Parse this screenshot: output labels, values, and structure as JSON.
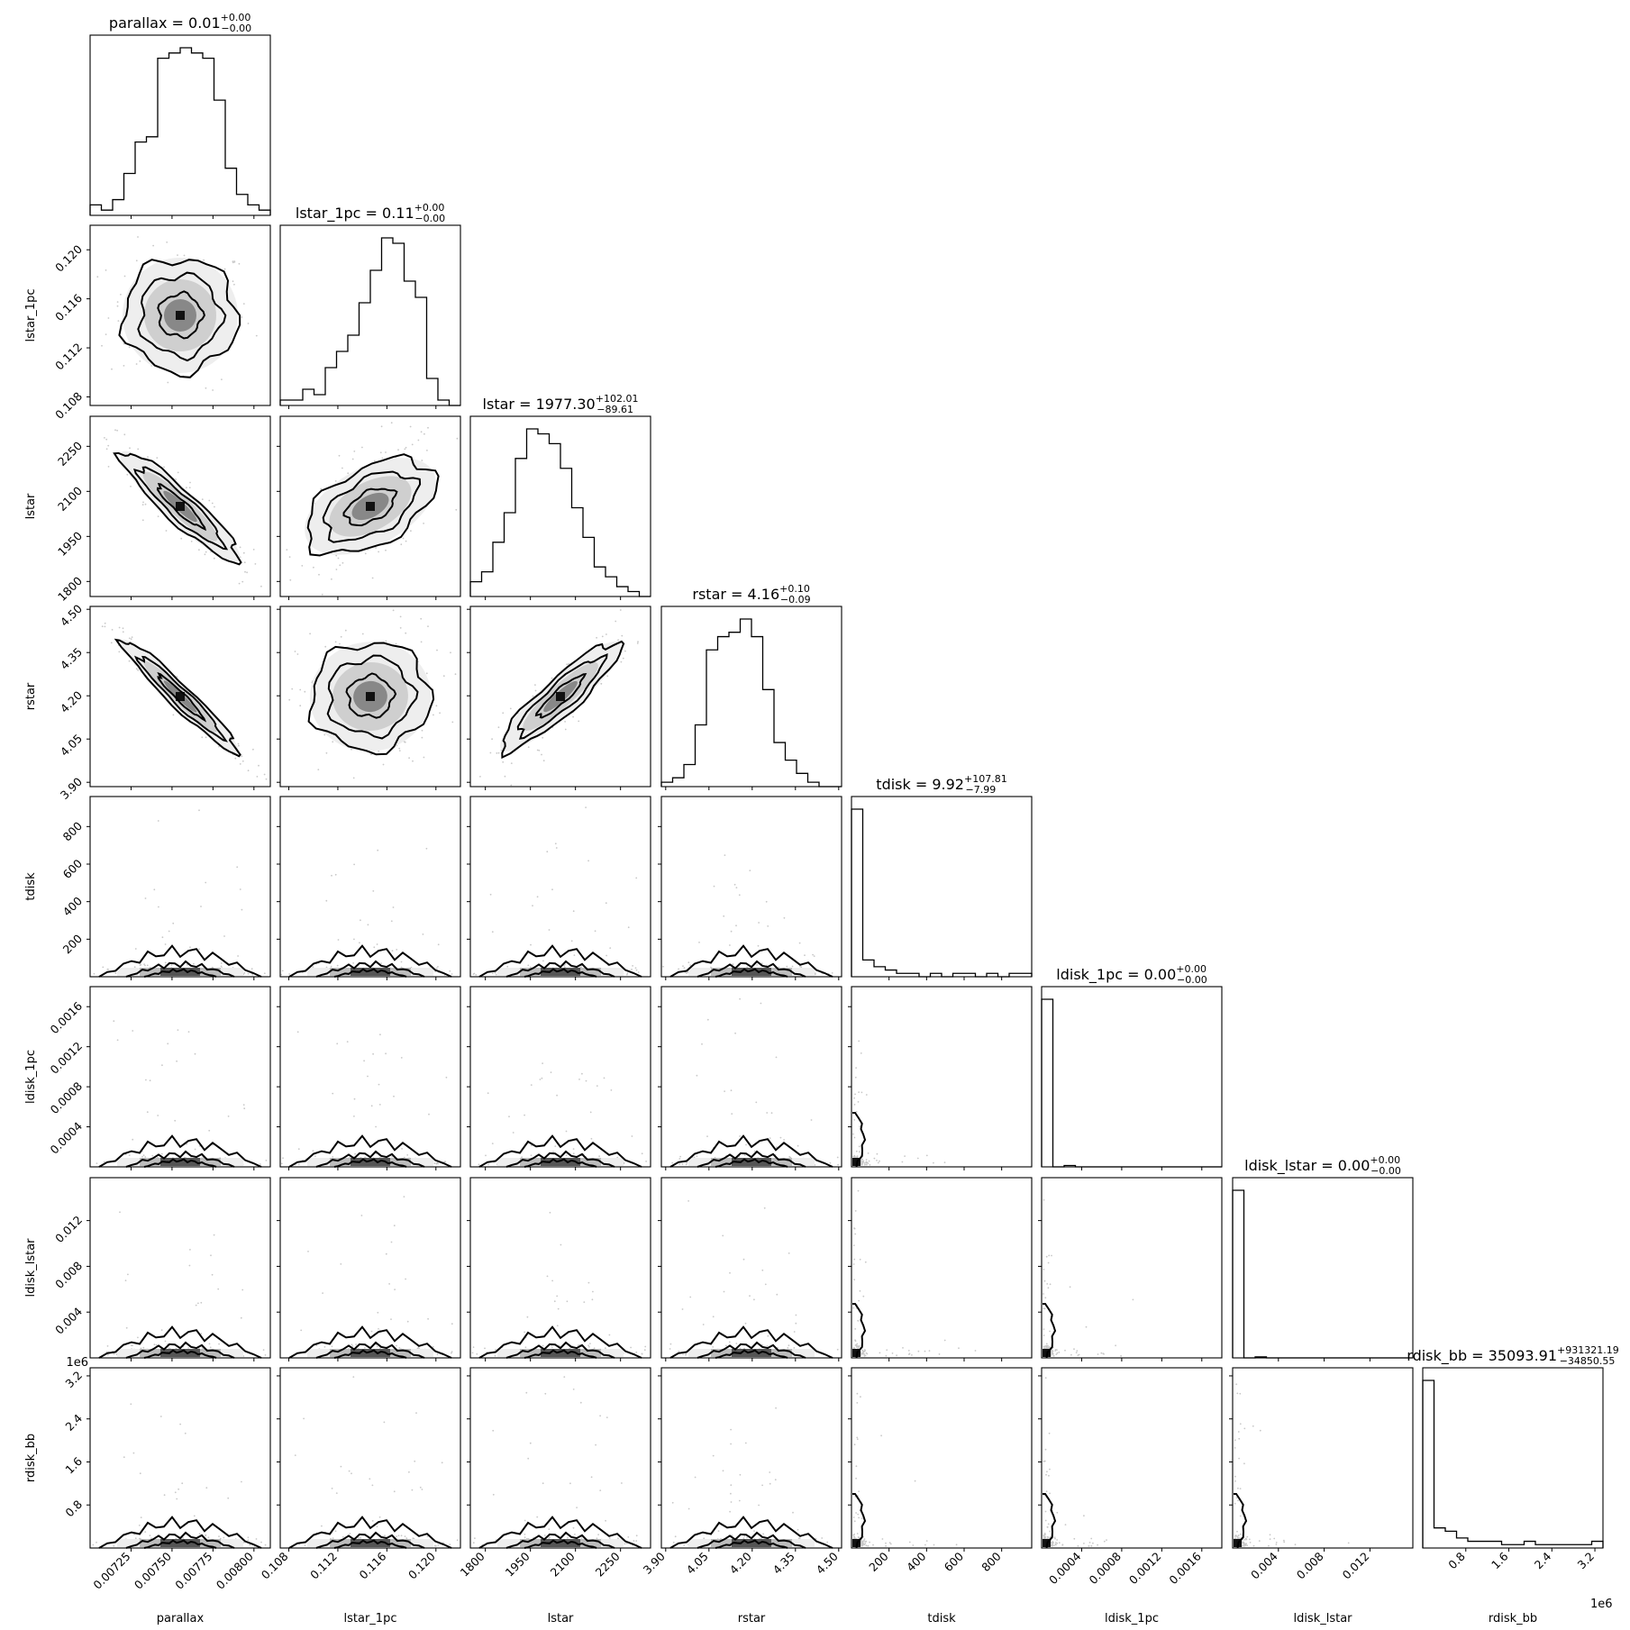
{
  "chart_data": {
    "type": "corner",
    "parameters": [
      "parallax",
      "lstar_1pc",
      "lstar",
      "rstar",
      "tdisk",
      "ldisk_1pc",
      "ldisk_lstar",
      "rdisk_bb"
    ],
    "axis_labels": [
      "parallax",
      "lstar_1pc",
      "lstar",
      "rstar",
      "tdisk",
      "ldisk_1pc",
      "ldisk_lstar",
      "rdisk_bb"
    ],
    "titles": [
      {
        "name": "parallax",
        "median": "0.01",
        "plus": "+0.00",
        "minus": "−0.00"
      },
      {
        "name": "lstar_1pc",
        "median": "0.11",
        "plus": "+0.00",
        "minus": "−0.00"
      },
      {
        "name": "lstar",
        "median": "1977.30",
        "plus": "+102.01",
        "minus": "−89.61"
      },
      {
        "name": "rstar",
        "median": "4.16",
        "plus": "+0.10",
        "minus": "−0.09"
      },
      {
        "name": "tdisk",
        "median": "9.92",
        "plus": "+107.81",
        "minus": "−7.99"
      },
      {
        "name": "ldisk_1pc",
        "median": "0.00",
        "plus": "+0.00",
        "minus": "−0.00"
      },
      {
        "name": "ldisk_lstar",
        "median": "0.00",
        "plus": "+0.00",
        "minus": "−0.00"
      },
      {
        "name": "rdisk_bb",
        "median": "35093.91",
        "plus": "+931321.19",
        "minus": "−34850.55"
      }
    ],
    "ranges": [
      [
        0.007,
        0.0081
      ],
      [
        0.1073,
        0.122
      ],
      [
        1750,
        2350
      ],
      [
        3.885,
        4.51
      ],
      [
        0,
        960
      ],
      [
        0,
        0.0018
      ],
      [
        0,
        0.01575
      ],
      [
        0,
        3350000.0
      ]
    ],
    "ticks": [
      [
        0.00725,
        0.0075,
        0.00775,
        0.008
      ],
      [
        0.108,
        0.112,
        0.116,
        0.12
      ],
      [
        1800,
        1950,
        2100,
        2250
      ],
      [
        3.9,
        4.05,
        4.2,
        4.35,
        4.5
      ],
      [
        200,
        400,
        600,
        800
      ],
      [
        0.0004,
        0.0008,
        0.0012,
        0.0016
      ],
      [
        0.004,
        0.008,
        0.012
      ],
      [
        800000,
        1600000,
        2400000,
        3200000
      ]
    ],
    "tick_labels": [
      [
        "0.00725",
        "0.00750",
        "0.00775",
        "0.00800"
      ],
      [
        "0.108",
        "0.112",
        "0.116",
        "0.120"
      ],
      [
        "1800",
        "1950",
        "2100",
        "2250"
      ],
      [
        "3.90",
        "4.05",
        "4.20",
        "4.35",
        "4.50"
      ],
      [
        "200",
        "400",
        "600",
        "800"
      ],
      [
        "0.0004",
        "0.0008",
        "0.0012",
        "0.0016"
      ],
      [
        "0.004",
        "0.008",
        "0.012"
      ],
      [
        "0.8",
        "1.6",
        "2.4",
        "3.2"
      ]
    ],
    "offset_labels": [
      "",
      "",
      "",
      "",
      "",
      "",
      "",
      "1e6"
    ],
    "histograms": [
      [
        2,
        1,
        3,
        8,
        14,
        15,
        30,
        31,
        32,
        31,
        30,
        22,
        9,
        4,
        2,
        1
      ],
      [
        1,
        1,
        3,
        2,
        7,
        10,
        13,
        19,
        25,
        31,
        30,
        23,
        20,
        5,
        1,
        0
      ],
      [
        3,
        5,
        11,
        17,
        28,
        34,
        33,
        31,
        26,
        18,
        12,
        6,
        4,
        2,
        1,
        0
      ],
      [
        1,
        2,
        5,
        14,
        31,
        34,
        35,
        38,
        34,
        22,
        10,
        6,
        3,
        1,
        0,
        0
      ],
      [
        50,
        5,
        3,
        2,
        1,
        1,
        0,
        1,
        0,
        1,
        1,
        0,
        1,
        0,
        1,
        1
      ],
      [
        50,
        0,
        0.4,
        0,
        0,
        0,
        0,
        0,
        0,
        0,
        0,
        0,
        0,
        0,
        0,
        0
      ],
      [
        50,
        0,
        0.3,
        0,
        0,
        0,
        0,
        0,
        0,
        0,
        0,
        0,
        0,
        0,
        0,
        0
      ],
      [
        50,
        6,
        5,
        3,
        2,
        2,
        2,
        1,
        1,
        2,
        1,
        1,
        1,
        1,
        1,
        2
      ]
    ]
  }
}
